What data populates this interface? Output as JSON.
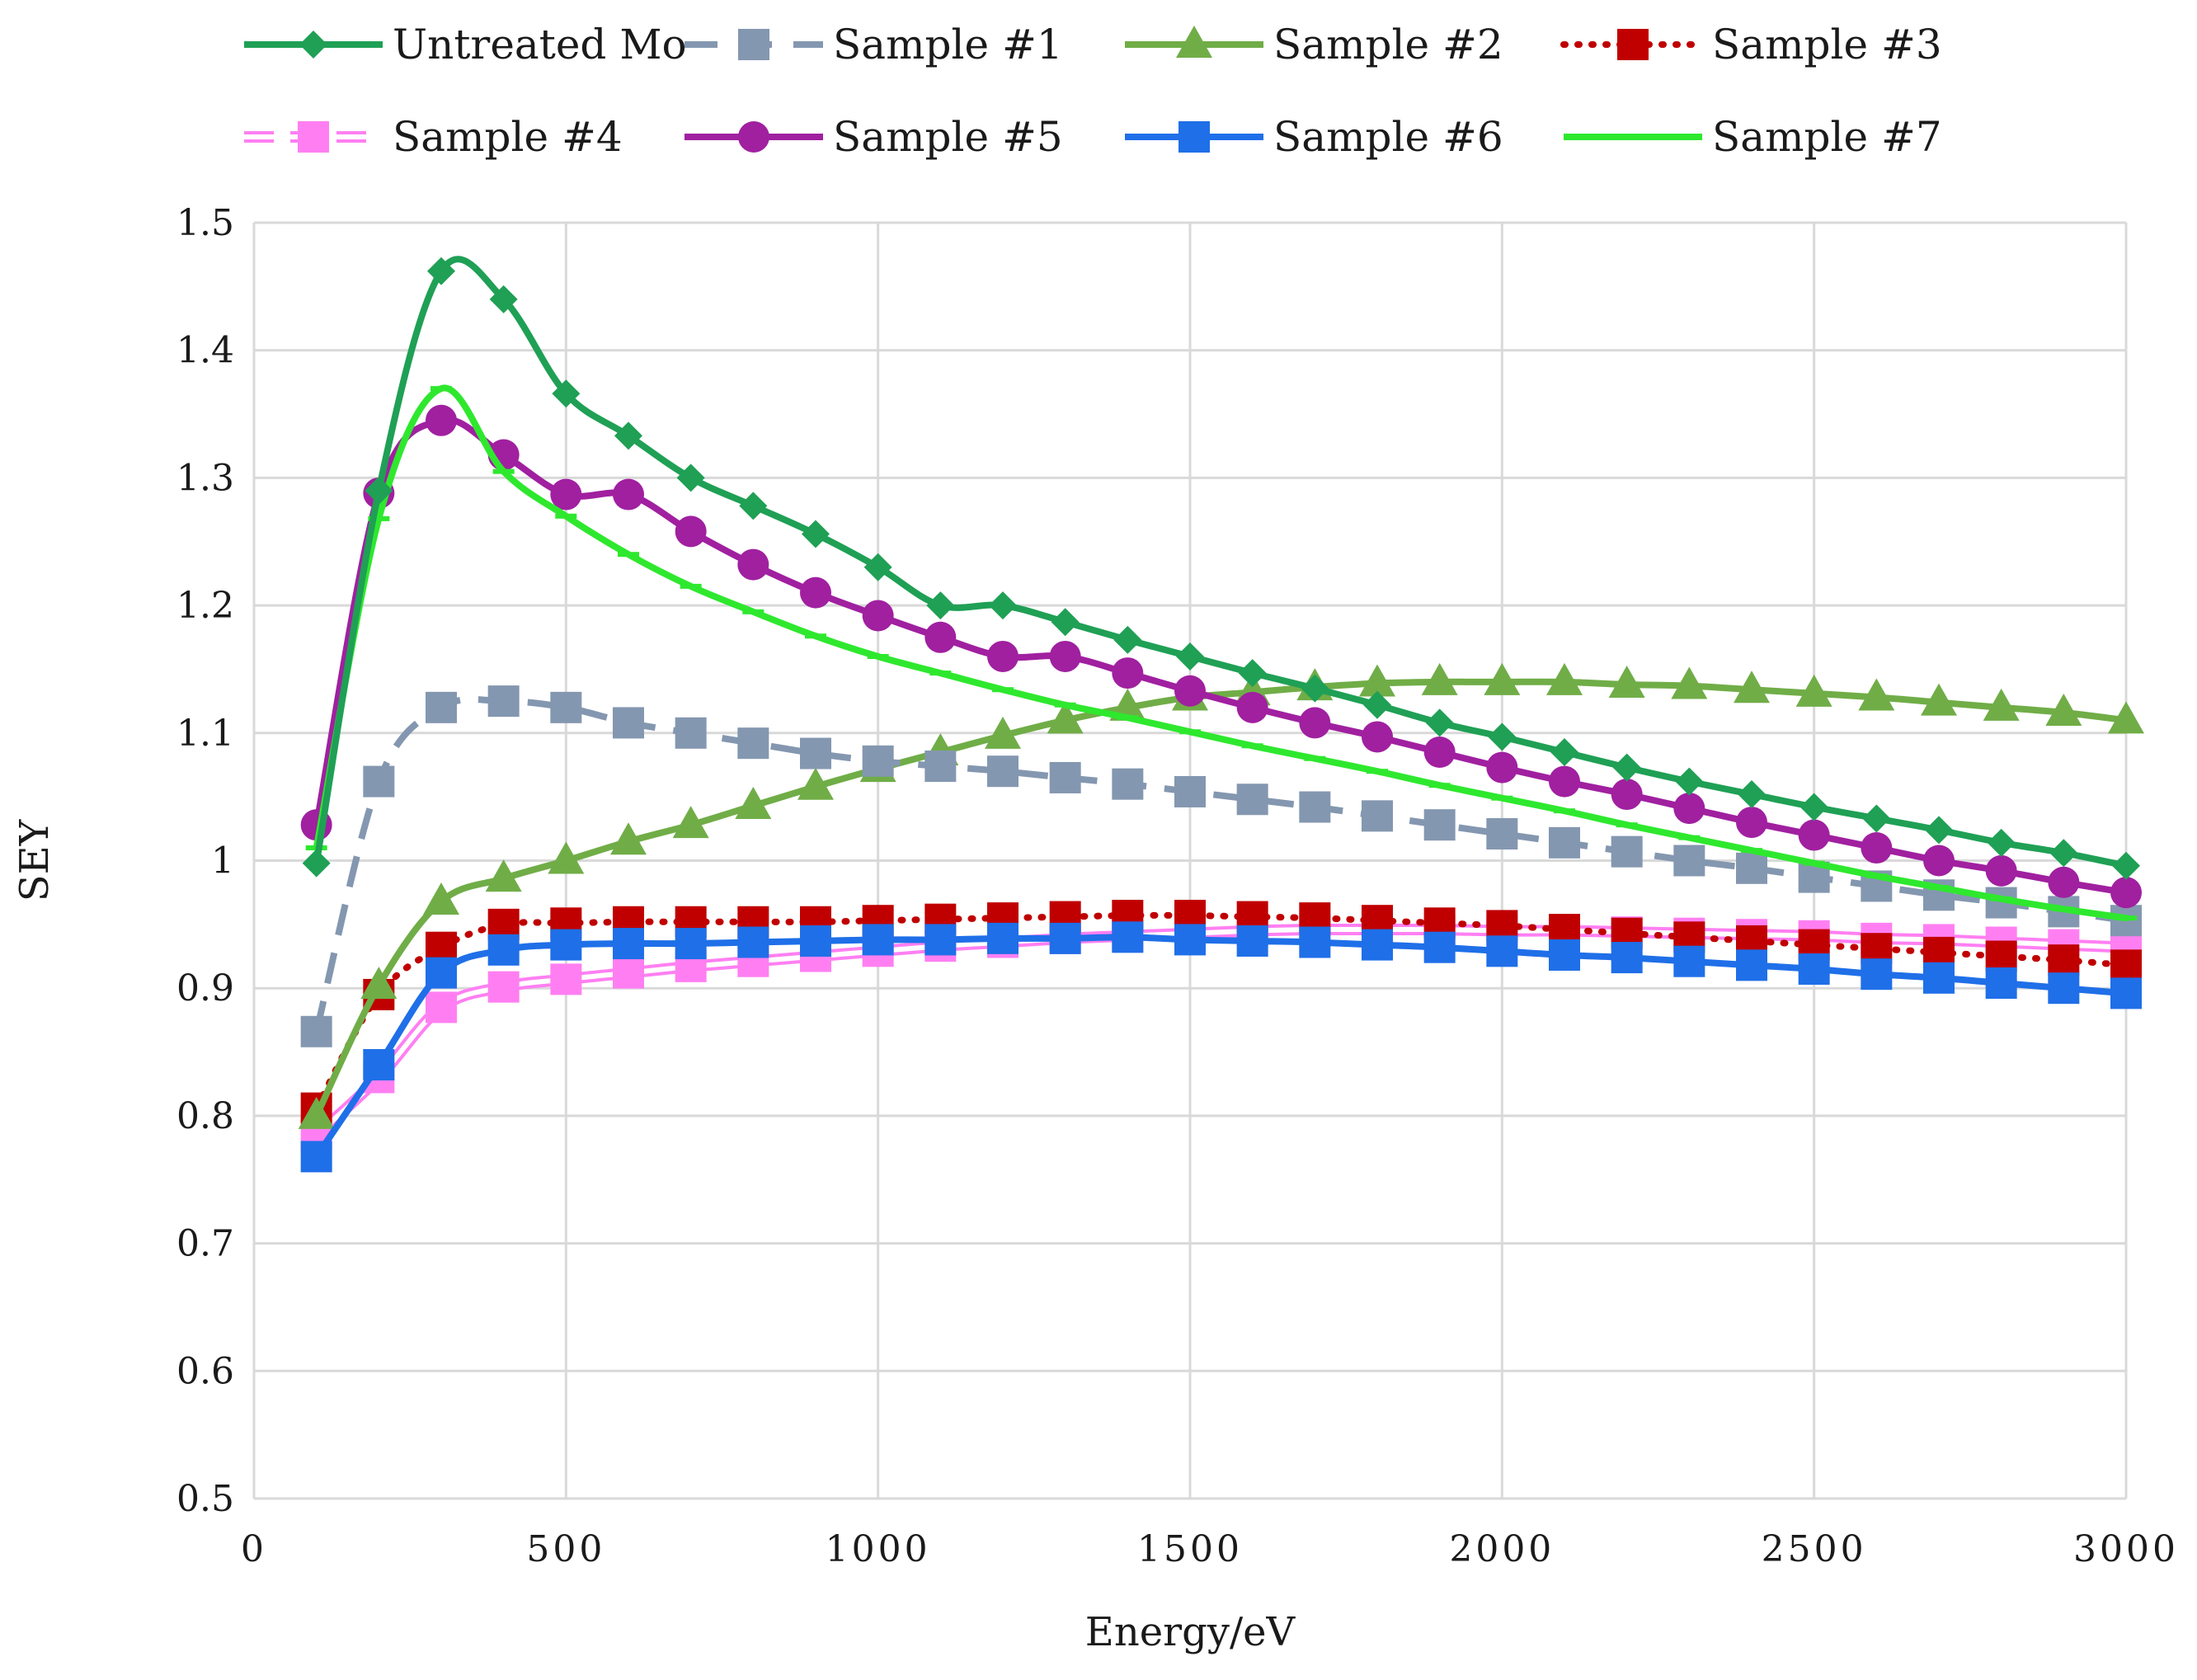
{
  "chart_data": {
    "type": "line",
    "title": "",
    "xlabel": "Energy/eV",
    "ylabel": "SEY",
    "xlim": [
      0,
      3000
    ],
    "ylim": [
      0.5,
      1.5
    ],
    "x_ticks": [
      0,
      500,
      1000,
      1500,
      2000,
      2500,
      3000
    ],
    "y_ticks": [
      0.5,
      0.6,
      0.7,
      0.8,
      0.9,
      1.0,
      1.1,
      1.2,
      1.3,
      1.4,
      1.5
    ],
    "x_tick_labels": [
      "0",
      "500",
      "1000",
      "1500",
      "2000",
      "2500",
      "3000"
    ],
    "y_tick_labels": [
      "0.5",
      "0.6",
      "0.7",
      "0.8",
      "0.9",
      "1",
      "1.1",
      "1.2",
      "1.3",
      "1.4",
      "1.5"
    ],
    "grid": true,
    "legend_position": "top",
    "x": [
      100,
      200,
      300,
      400,
      500,
      600,
      700,
      800,
      900,
      1000,
      1100,
      1200,
      1300,
      1400,
      1500,
      1600,
      1700,
      1800,
      1900,
      2000,
      2100,
      2200,
      2300,
      2400,
      2500,
      2600,
      2700,
      2800,
      2900,
      3000
    ],
    "series": [
      {
        "name": "Untreated Mo",
        "color": "#1fa055",
        "marker": "diamond",
        "dash": "solid",
        "values": [
          0.998,
          1.29,
          1.462,
          1.44,
          1.366,
          1.333,
          1.3,
          1.278,
          1.256,
          1.23,
          1.2,
          1.2,
          1.187,
          1.173,
          1.16,
          1.147,
          1.135,
          1.122,
          1.108,
          1.097,
          1.085,
          1.073,
          1.062,
          1.052,
          1.042,
          1.033,
          1.024,
          1.014,
          1.006,
          0.996
        ]
      },
      {
        "name": "Sample #1",
        "color": "#8497b0",
        "marker": "square",
        "dash": "dashed",
        "values": [
          0.866,
          1.062,
          1.12,
          1.125,
          1.12,
          1.108,
          1.1,
          1.092,
          1.084,
          1.078,
          1.074,
          1.07,
          1.065,
          1.06,
          1.054,
          1.048,
          1.042,
          1.035,
          1.028,
          1.021,
          1.014,
          1.007,
          1.0,
          0.994,
          0.987,
          0.98,
          0.973,
          0.967,
          0.96,
          0.953
        ]
      },
      {
        "name": "Sample #2",
        "color": "#70ad47",
        "marker": "triangle",
        "dash": "solid",
        "values": [
          0.8,
          0.902,
          0.968,
          0.986,
          1.0,
          1.015,
          1.028,
          1.043,
          1.058,
          1.072,
          1.085,
          1.098,
          1.11,
          1.12,
          1.128,
          1.132,
          1.136,
          1.139,
          1.14,
          1.14,
          1.14,
          1.138,
          1.137,
          1.134,
          1.131,
          1.128,
          1.124,
          1.12,
          1.116,
          1.11
        ]
      },
      {
        "name": "Sample #3",
        "color": "#c00000",
        "marker": "square",
        "dash": "dotted",
        "values": [
          0.806,
          0.895,
          0.932,
          0.95,
          0.951,
          0.952,
          0.952,
          0.952,
          0.952,
          0.953,
          0.954,
          0.955,
          0.956,
          0.957,
          0.957,
          0.956,
          0.955,
          0.953,
          0.951,
          0.949,
          0.946,
          0.943,
          0.94,
          0.937,
          0.934,
          0.931,
          0.928,
          0.925,
          0.922,
          0.918
        ]
      },
      {
        "name": "Sample #4",
        "color": "#ff7ff2",
        "marker": "square",
        "dash": "double",
        "values": [
          0.785,
          0.83,
          0.885,
          0.901,
          0.907,
          0.912,
          0.917,
          0.921,
          0.925,
          0.929,
          0.933,
          0.936,
          0.939,
          0.941,
          0.943,
          0.945,
          0.946,
          0.946,
          0.946,
          0.945,
          0.945,
          0.944,
          0.943,
          0.942,
          0.941,
          0.939,
          0.938,
          0.936,
          0.934,
          0.932
        ]
      },
      {
        "name": "Sample #5",
        "color": "#a020a0",
        "marker": "circle",
        "dash": "solid",
        "values": [
          1.028,
          1.288,
          1.345,
          1.318,
          1.287,
          1.287,
          1.258,
          1.232,
          1.21,
          1.192,
          1.175,
          1.16,
          1.16,
          1.147,
          1.133,
          1.12,
          1.108,
          1.097,
          1.085,
          1.073,
          1.062,
          1.052,
          1.041,
          1.03,
          1.02,
          1.01,
          1.0,
          0.992,
          0.983,
          0.975
        ]
      },
      {
        "name": "Sample #6",
        "color": "#1f6fe8",
        "marker": "square",
        "dash": "solid",
        "values": [
          0.768,
          0.84,
          0.912,
          0.93,
          0.934,
          0.935,
          0.935,
          0.936,
          0.937,
          0.938,
          0.938,
          0.939,
          0.939,
          0.94,
          0.938,
          0.937,
          0.936,
          0.934,
          0.932,
          0.929,
          0.926,
          0.924,
          0.921,
          0.918,
          0.915,
          0.911,
          0.908,
          0.904,
          0.9,
          0.896
        ]
      },
      {
        "name": "Sample #7",
        "color": "#2ee82e",
        "marker": "dash",
        "dash": "solid",
        "values": [
          1.01,
          1.268,
          1.37,
          1.305,
          1.27,
          1.24,
          1.215,
          1.195,
          1.176,
          1.16,
          1.147,
          1.134,
          1.122,
          1.112,
          1.101,
          1.09,
          1.08,
          1.07,
          1.059,
          1.049,
          1.039,
          1.028,
          1.018,
          1.008,
          0.998,
          0.988,
          0.979,
          0.97,
          0.962,
          0.955
        ]
      }
    ]
  }
}
